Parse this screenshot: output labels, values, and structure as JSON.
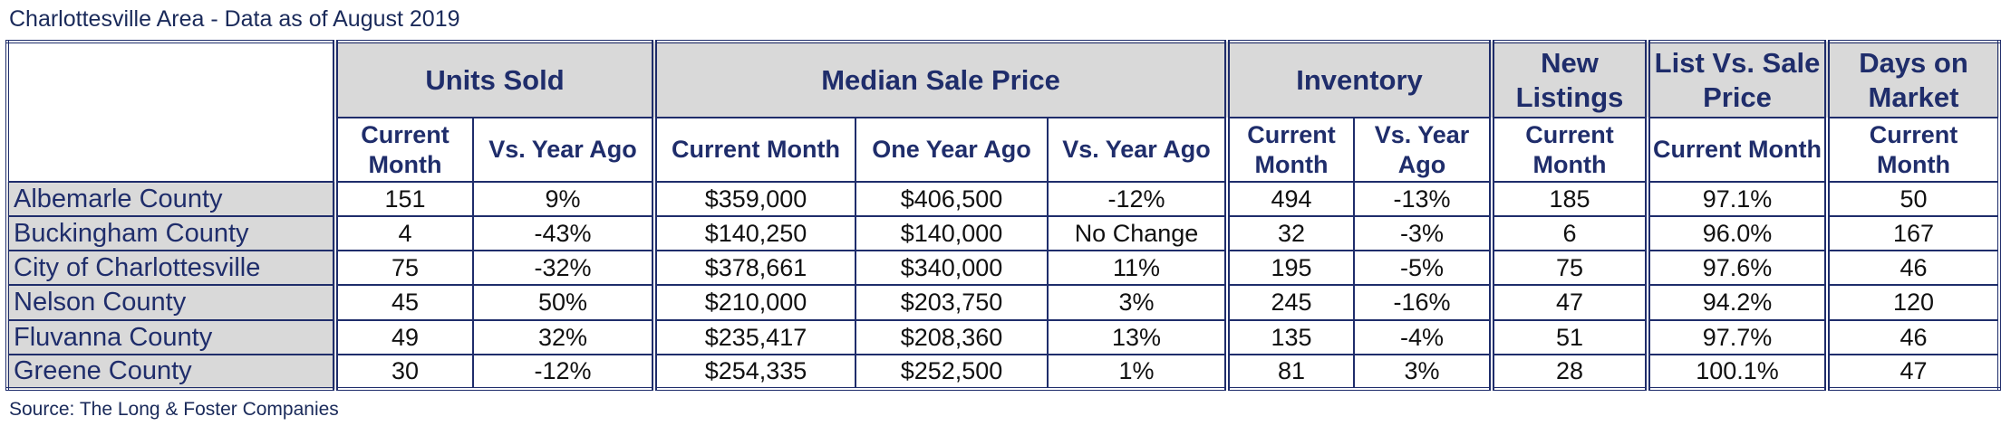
{
  "title": "Charlottesville Area - Data as of August 2019",
  "source": "Source: The Long & Foster Companies",
  "groups": {
    "units_sold": "Units Sold",
    "median_sale_price": "Median Sale Price",
    "inventory": "Inventory",
    "new_listings": "New Listings",
    "list_vs_sale": "List Vs. Sale Price",
    "days_on_market": "Days on Market"
  },
  "subheaders": [
    "Current Month",
    "Vs. Year Ago",
    "Current Month",
    "One Year Ago",
    "Vs. Year Ago",
    "Current Month",
    "Vs. Year Ago",
    "Current Month",
    "Current Month",
    "Current Month"
  ],
  "rows": [
    {
      "area": "Albemarle County",
      "cells": [
        "151",
        "9%",
        "$359,000",
        "$406,500",
        "-12%",
        "494",
        "-13%",
        "185",
        "97.1%",
        "50"
      ]
    },
    {
      "area": "Buckingham County",
      "cells": [
        "4",
        "-43%",
        "$140,250",
        "$140,000",
        "No Change",
        "32",
        "-3%",
        "6",
        "96.0%",
        "167"
      ]
    },
    {
      "area": "City of Charlottesville",
      "cells": [
        "75",
        "-32%",
        "$378,661",
        "$340,000",
        "11%",
        "195",
        "-5%",
        "75",
        "97.6%",
        "46"
      ]
    },
    {
      "area": "Nelson County",
      "cells": [
        "45",
        "50%",
        "$210,000",
        "$203,750",
        "3%",
        "245",
        "-16%",
        "47",
        "94.2%",
        "120"
      ]
    },
    {
      "area": "Fluvanna County",
      "cells": [
        "49",
        "32%",
        "$235,417",
        "$208,360",
        "13%",
        "135",
        "-4%",
        "51",
        "97.7%",
        "46"
      ]
    },
    {
      "area": "Greene County",
      "cells": [
        "30",
        "-12%",
        "$254,335",
        "$252,500",
        "1%",
        "81",
        "3%",
        "28",
        "100.1%",
        "47"
      ]
    }
  ],
  "colors": {
    "border": "#1f2d6b",
    "header_fill": "#d9d9d9",
    "header_text": "#1f2d6b"
  }
}
